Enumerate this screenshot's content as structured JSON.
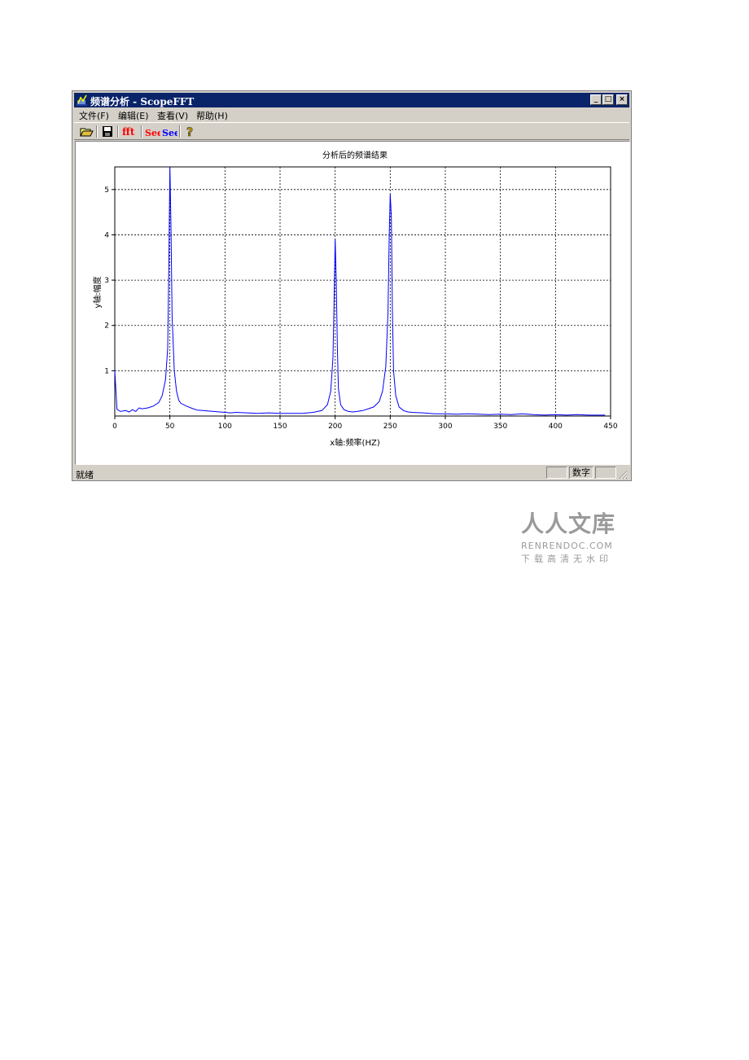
{
  "window": {
    "title": "频谱分析 - ScopeFFT",
    "minimize_glyph": "_",
    "maximize_glyph": "□",
    "close_glyph": "×"
  },
  "menu": [
    {
      "label": "文件(F)"
    },
    {
      "label": "编辑(E)"
    },
    {
      "label": "查看(V)"
    },
    {
      "label": "帮助(H)"
    }
  ],
  "toolbar": [
    {
      "icon": "open-folder-icon"
    },
    {
      "icon": "save-icon"
    },
    {
      "icon": "fft-icon",
      "label": "fft"
    },
    {
      "icon": "see-icon-1",
      "label": "See"
    },
    {
      "icon": "see-icon-2",
      "label": "See"
    },
    {
      "icon": "help-icon",
      "label": "?"
    }
  ],
  "status": {
    "text": "就绪",
    "num_indicator": "数字"
  },
  "watermark": {
    "title": "人人文库",
    "url": "RENRENDOC.COM",
    "subtitle": "下载高清无水印"
  },
  "colors": {
    "titlebar": "#0a246a",
    "series": "#0000ff",
    "fft_icon": "#ff0000",
    "see_icon": "#0000ff"
  },
  "chart_data": {
    "type": "line",
    "title": "分析后的频谱结果",
    "xlabel": "x轴:频率(HZ)",
    "ylabel": "y轴:幅度",
    "xlim": [
      0,
      450
    ],
    "ylim": [
      0,
      5.5
    ],
    "xticks": [
      0,
      50,
      100,
      150,
      200,
      250,
      300,
      350,
      400,
      450
    ],
    "yticks": [
      1,
      2,
      3,
      4,
      5
    ],
    "grid": true,
    "series": [
      {
        "x": [
          0,
          2,
          5,
          10,
          13,
          16,
          19,
          22,
          25,
          30,
          35,
          40,
          43,
          46,
          48,
          49,
          50,
          51,
          52,
          54,
          56,
          58,
          60,
          65,
          70,
          75,
          80,
          85,
          90,
          95,
          100,
          105,
          110,
          120,
          130,
          140,
          150,
          160,
          170,
          180,
          188,
          193,
          196,
          198,
          199,
          200,
          201,
          202,
          203,
          205,
          208,
          212,
          216,
          220,
          225,
          230,
          235,
          240,
          243,
          246,
          248,
          249,
          250,
          251,
          252,
          253,
          255,
          258,
          262,
          266,
          270,
          280,
          290,
          300,
          310,
          320,
          330,
          340,
          350,
          360,
          370,
          380,
          390,
          400,
          410,
          420,
          430,
          440,
          445
        ],
        "y": [
          1.0,
          0.15,
          0.1,
          0.12,
          0.09,
          0.14,
          0.1,
          0.18,
          0.16,
          0.18,
          0.22,
          0.3,
          0.45,
          0.8,
          1.5,
          3.2,
          5.5,
          4.2,
          2.2,
          1.0,
          0.55,
          0.35,
          0.28,
          0.22,
          0.17,
          0.13,
          0.12,
          0.11,
          0.1,
          0.09,
          0.08,
          0.07,
          0.08,
          0.07,
          0.06,
          0.07,
          0.06,
          0.06,
          0.06,
          0.08,
          0.12,
          0.25,
          0.55,
          1.3,
          2.5,
          3.9,
          3.0,
          1.5,
          0.6,
          0.25,
          0.14,
          0.1,
          0.09,
          0.1,
          0.12,
          0.16,
          0.2,
          0.32,
          0.55,
          1.1,
          2.3,
          3.9,
          4.9,
          4.4,
          2.3,
          1.0,
          0.45,
          0.2,
          0.12,
          0.09,
          0.08,
          0.07,
          0.05,
          0.05,
          0.04,
          0.05,
          0.04,
          0.03,
          0.04,
          0.03,
          0.05,
          0.03,
          0.02,
          0.03,
          0.02,
          0.03,
          0.02,
          0.02,
          0.02
        ]
      }
    ]
  }
}
